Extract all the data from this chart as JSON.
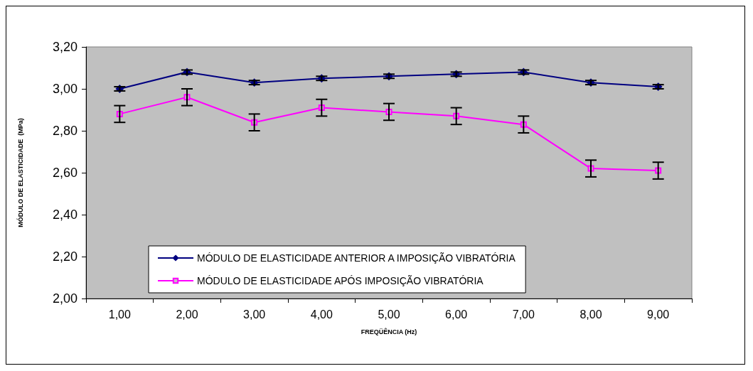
{
  "chart_data": {
    "type": "line",
    "xlabel": "FREQÜÊNCIA (Hz)",
    "ylabel": "MÓDULO DE ELASTICIDADE  (MPa)",
    "categories": [
      "1,00",
      "2,00",
      "3,00",
      "4,00",
      "5,00",
      "6,00",
      "7,00",
      "8,00",
      "9,00"
    ],
    "series": [
      {
        "name": "MÓDULO DE ELASTICIDADE ANTERIOR A IMPOSIÇÃO VIBRATÓRIA",
        "color": "#000080",
        "marker": "diamond",
        "values": [
          3.0,
          3.08,
          3.03,
          3.05,
          3.06,
          3.07,
          3.08,
          3.03,
          3.01
        ],
        "errors": [
          0.01,
          0.01,
          0.01,
          0.01,
          0.01,
          0.01,
          0.01,
          0.01,
          0.01
        ]
      },
      {
        "name": "MÓDULO DE ELASTICIDADE APÓS IMPOSIÇÃO VIBRATÓRIA",
        "color": "#ff00ff",
        "marker": "square",
        "values": [
          2.88,
          2.96,
          2.84,
          2.91,
          2.89,
          2.87,
          2.83,
          2.62,
          2.61
        ],
        "errors": [
          0.04,
          0.04,
          0.04,
          0.04,
          0.04,
          0.04,
          0.04,
          0.04,
          0.04
        ]
      }
    ],
    "ylim": [
      2.0,
      3.2
    ],
    "yticks": [
      {
        "value": 2.0,
        "label": "2,00"
      },
      {
        "value": 2.2,
        "label": "2,20"
      },
      {
        "value": 2.4,
        "label": "2,40"
      },
      {
        "value": 2.6,
        "label": "2,60"
      },
      {
        "value": 2.8,
        "label": "2,80"
      },
      {
        "value": 3.0,
        "label": "3,00"
      },
      {
        "value": 3.2,
        "label": "3,20"
      }
    ],
    "grid": false,
    "legend": "bottom left",
    "line_style": "solid"
  }
}
